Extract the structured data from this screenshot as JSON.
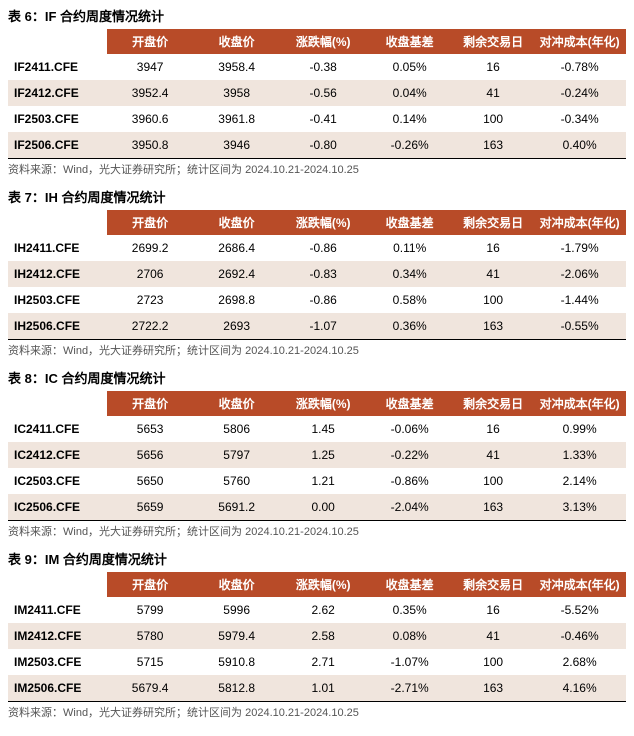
{
  "colors": {
    "header_bg": "#b84b28",
    "header_fg": "#ffffff",
    "row_alt_bg": "#f0e5dd",
    "row_bg": "#ffffff",
    "text": "#000000",
    "source_fg": "#555555",
    "border_bottom": "#000000"
  },
  "columns": [
    "",
    "开盘价",
    "收盘价",
    "涨跌幅(%)",
    "收盘基差",
    "剩余交易日",
    "对冲成本(年化)"
  ],
  "tables": [
    {
      "title": "表 6：IF 合约周度情况统计",
      "rows": [
        [
          "IF2411.CFE",
          "3947",
          "3958.4",
          "-0.38",
          "0.05%",
          "16",
          "-0.78%"
        ],
        [
          "IF2412.CFE",
          "3952.4",
          "3958",
          "-0.56",
          "0.04%",
          "41",
          "-0.24%"
        ],
        [
          "IF2503.CFE",
          "3960.6",
          "3961.8",
          "-0.41",
          "0.14%",
          "100",
          "-0.34%"
        ],
        [
          "IF2506.CFE",
          "3950.8",
          "3946",
          "-0.80",
          "-0.26%",
          "163",
          "0.40%"
        ]
      ],
      "source": "资料来源：Wind，光大证券研究所；统计区间为 2024.10.21-2024.10.25"
    },
    {
      "title": "表 7：IH 合约周度情况统计",
      "rows": [
        [
          "IH2411.CFE",
          "2699.2",
          "2686.4",
          "-0.86",
          "0.11%",
          "16",
          "-1.79%"
        ],
        [
          "IH2412.CFE",
          "2706",
          "2692.4",
          "-0.83",
          "0.34%",
          "41",
          "-2.06%"
        ],
        [
          "IH2503.CFE",
          "2723",
          "2698.8",
          "-0.86",
          "0.58%",
          "100",
          "-1.44%"
        ],
        [
          "IH2506.CFE",
          "2722.2",
          "2693",
          "-1.07",
          "0.36%",
          "163",
          "-0.55%"
        ]
      ],
      "source": "资料来源：Wind，光大证券研究所；统计区间为 2024.10.21-2024.10.25"
    },
    {
      "title": "表 8：IC 合约周度情况统计",
      "rows": [
        [
          "IC2411.CFE",
          "5653",
          "5806",
          "1.45",
          "-0.06%",
          "16",
          "0.99%"
        ],
        [
          "IC2412.CFE",
          "5656",
          "5797",
          "1.25",
          "-0.22%",
          "41",
          "1.33%"
        ],
        [
          "IC2503.CFE",
          "5650",
          "5760",
          "1.21",
          "-0.86%",
          "100",
          "2.14%"
        ],
        [
          "IC2506.CFE",
          "5659",
          "5691.2",
          "0.00",
          "-2.04%",
          "163",
          "3.13%"
        ]
      ],
      "source": "资料来源：Wind，光大证券研究所；统计区间为 2024.10.21-2024.10.25"
    },
    {
      "title": "表 9：IM 合约周度情况统计",
      "rows": [
        [
          "IM2411.CFE",
          "5799",
          "5996",
          "2.62",
          "0.35%",
          "16",
          "-5.52%"
        ],
        [
          "IM2412.CFE",
          "5780",
          "5979.4",
          "2.58",
          "0.08%",
          "41",
          "-0.46%"
        ],
        [
          "IM2503.CFE",
          "5715",
          "5910.8",
          "2.71",
          "-1.07%",
          "100",
          "2.68%"
        ],
        [
          "IM2506.CFE",
          "5679.4",
          "5812.8",
          "1.01",
          "-2.71%",
          "163",
          "4.16%"
        ]
      ],
      "source": "资料来源：Wind，光大证券研究所；统计区间为 2024.10.21-2024.10.25"
    }
  ]
}
